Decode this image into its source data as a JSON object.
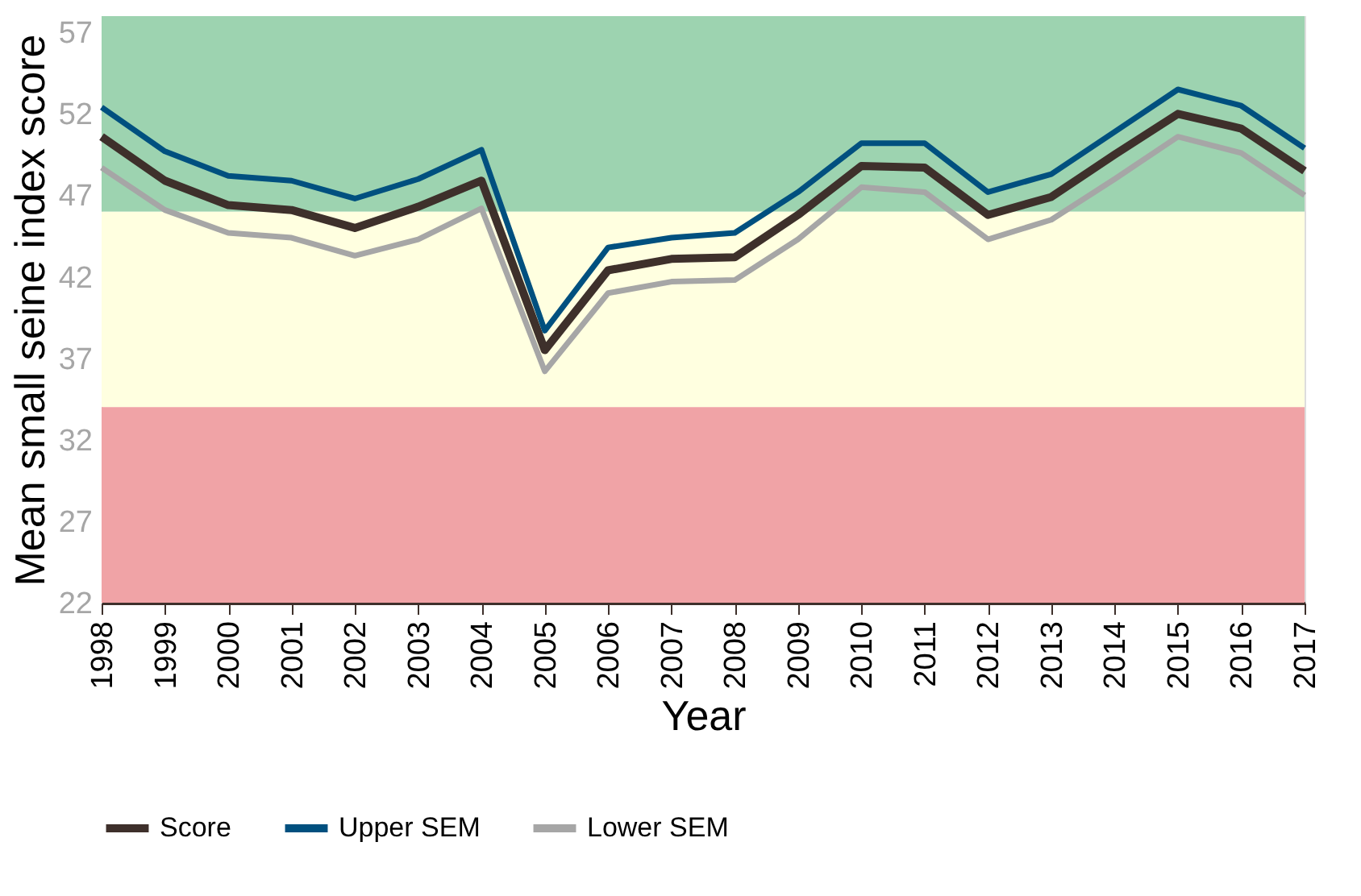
{
  "chart_data": {
    "type": "line",
    "xlabel": "Year",
    "ylabel": "Mean small seine index score",
    "categories": [
      "1998",
      "1999",
      "2000",
      "2001",
      "2002",
      "2003",
      "2004",
      "2005",
      "2006",
      "2007",
      "2008",
      "2009",
      "2010",
      "2011",
      "2012",
      "2013",
      "2014",
      "2015",
      "2016",
      "2017"
    ],
    "series": [
      {
        "name": "Score",
        "color": "#3e302b",
        "values": [
          50.6,
          47.9,
          46.4,
          46.1,
          45.0,
          46.3,
          47.9,
          37.5,
          42.4,
          43.1,
          43.2,
          45.8,
          48.8,
          48.7,
          45.8,
          46.9,
          49.5,
          52.0,
          51.1,
          48.5
        ]
      },
      {
        "name": "Upper SEM",
        "color": "#00507f",
        "values": [
          52.4,
          49.7,
          48.2,
          47.9,
          46.8,
          48.0,
          49.8,
          38.7,
          43.8,
          44.4,
          44.7,
          47.2,
          50.2,
          50.2,
          47.2,
          48.3,
          50.9,
          53.5,
          52.5,
          49.9
        ]
      },
      {
        "name": "Lower SEM",
        "color": "#a6a6a6",
        "values": [
          48.7,
          46.1,
          44.7,
          44.4,
          43.3,
          44.3,
          46.2,
          36.2,
          41.0,
          41.7,
          41.8,
          44.3,
          47.5,
          47.2,
          44.3,
          45.5,
          48.0,
          50.6,
          49.6,
          47.0
        ]
      }
    ],
    "ylim": [
      22,
      58
    ],
    "yticks": [
      22,
      27,
      32,
      37,
      42,
      47,
      52,
      57
    ],
    "bands": [
      {
        "axis": "y",
        "from": 46,
        "to": 58,
        "color": "#9dd3b0"
      },
      {
        "axis": "y",
        "from": 34,
        "to": 46,
        "color": "#ffffe0"
      },
      {
        "axis": "y",
        "from": 22,
        "to": 34,
        "color": "#f0a3a6"
      }
    ],
    "grid": false,
    "legend": "bottom",
    "marker": "none",
    "line_style": "solid"
  }
}
